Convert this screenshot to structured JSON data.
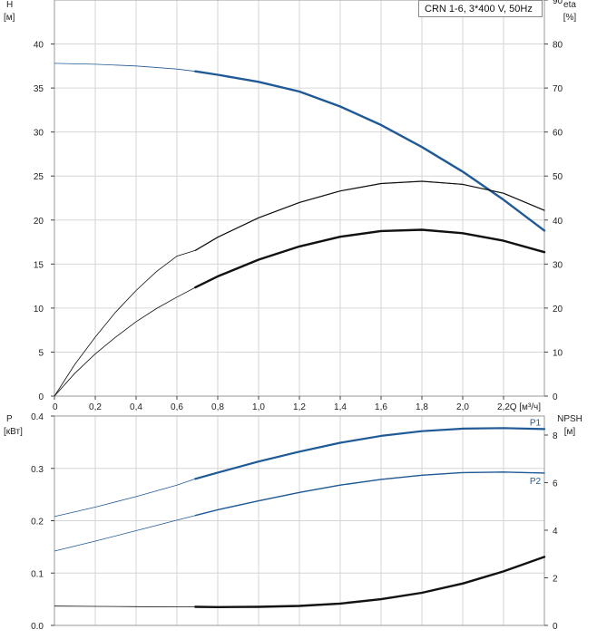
{
  "legend_box": {
    "text": "CRN 1-6, 3*400 V, 50Hz"
  },
  "chart_data": [
    {
      "type": "line",
      "x_label": "Q [м³/ч]",
      "x_ticks": [
        "0",
        "0,2",
        "0,4",
        "0,6",
        "0,8",
        "1,0",
        "1,2",
        "1,4",
        "1,6",
        "1,8",
        "2,0",
        "2,2"
      ],
      "xlim": [
        0,
        2.4
      ],
      "left_axis": {
        "label_top": "H",
        "label_unit": "[м]",
        "ylim": [
          0,
          45
        ],
        "ticks": [
          0,
          5,
          10,
          15,
          20,
          25,
          30,
          35,
          40
        ]
      },
      "right_axis": {
        "label_top": "eta",
        "label_unit": "[%]",
        "ylim": [
          0,
          90
        ],
        "ticks": [
          0,
          10,
          20,
          30,
          40,
          50,
          60,
          70,
          80,
          90
        ]
      },
      "grid": true,
      "series": [
        {
          "axis": "left",
          "color": "#1f5a96",
          "width_thin": 0.8,
          "width_bold": 2.4,
          "op_range": [
            0.69,
            2.4
          ],
          "x": [
            0,
            0.2,
            0.4,
            0.6,
            0.69,
            0.8,
            1.0,
            1.2,
            1.4,
            1.6,
            1.8,
            2.0,
            2.2,
            2.4
          ],
          "y": [
            37.8,
            37.7,
            37.5,
            37.15,
            36.9,
            36.5,
            35.7,
            34.6,
            32.9,
            30.8,
            28.3,
            25.5,
            22.3,
            18.8
          ]
        },
        {
          "axis": "right",
          "color": "#111111",
          "width_thin": 0.8,
          "width_bold": 1.2,
          "op_range": [
            0.69,
            2.4
          ],
          "x": [
            0,
            0.1,
            0.2,
            0.3,
            0.4,
            0.5,
            0.6,
            0.69,
            0.8,
            1.0,
            1.2,
            1.4,
            1.6,
            1.8,
            2.0,
            2.2,
            2.4
          ],
          "y": [
            0,
            7.2,
            13.4,
            19.1,
            24.0,
            28.3,
            31.8,
            33.1,
            36.1,
            40.5,
            44.0,
            46.6,
            48.3,
            48.8,
            48.1,
            46.1,
            42.2
          ]
        },
        {
          "axis": "right",
          "color": "#111111",
          "width_thin": 0.8,
          "width_bold": 2.4,
          "op_range": [
            0.69,
            2.4
          ],
          "x": [
            0,
            0.1,
            0.2,
            0.3,
            0.4,
            0.5,
            0.6,
            0.69,
            0.8,
            1.0,
            1.2,
            1.4,
            1.6,
            1.8,
            2.0,
            2.2,
            2.4
          ],
          "y": [
            0,
            5.2,
            9.6,
            13.4,
            16.9,
            19.9,
            22.5,
            24.7,
            27.2,
            31.0,
            34.0,
            36.2,
            37.5,
            37.8,
            37.0,
            35.3,
            32.7
          ]
        }
      ]
    },
    {
      "type": "line",
      "x_ticks": [],
      "xlim": [
        0,
        2.4
      ],
      "left_axis": {
        "label_top": "P",
        "label_unit": "[кВт]",
        "ylim": [
          0,
          0.4
        ],
        "ticks": [
          "0.0",
          "0.1",
          "0.2",
          "0.3",
          "0.4"
        ]
      },
      "right_axis": {
        "label_top": "NPSH",
        "label_unit": "[м]",
        "ylim": [
          0,
          8.8
        ],
        "ticks": [
          0,
          2,
          4,
          6,
          8
        ]
      },
      "grid": true,
      "series": [
        {
          "name": "P1",
          "axis": "left",
          "color": "#1f5a96",
          "width_thin": 0.8,
          "width_bold": 2.2,
          "op_range": [
            0.69,
            2.4
          ],
          "x": [
            0,
            0.2,
            0.4,
            0.6,
            0.69,
            0.8,
            1.0,
            1.2,
            1.4,
            1.6,
            1.8,
            2.0,
            2.2,
            2.4
          ],
          "y": [
            0.208,
            0.226,
            0.246,
            0.268,
            0.28,
            0.292,
            0.313,
            0.332,
            0.349,
            0.362,
            0.371,
            0.376,
            0.377,
            0.375
          ]
        },
        {
          "name": "P2",
          "axis": "left",
          "color": "#1f5a96",
          "width_thin": 0.8,
          "width_bold": 1.4,
          "op_range": [
            0.69,
            2.4
          ],
          "x": [
            0,
            0.2,
            0.4,
            0.6,
            0.69,
            0.8,
            1.0,
            1.2,
            1.4,
            1.6,
            1.8,
            2.0,
            2.2,
            2.4
          ],
          "y": [
            0.142,
            0.161,
            0.181,
            0.201,
            0.21,
            0.221,
            0.238,
            0.254,
            0.268,
            0.279,
            0.287,
            0.292,
            0.293,
            0.291
          ]
        },
        {
          "axis": "right",
          "color": "#111111",
          "width_thin": 0.8,
          "width_bold": 2.4,
          "op_range": [
            0.69,
            2.4
          ],
          "x": [
            0,
            0.2,
            0.4,
            0.6,
            0.69,
            0.8,
            1.0,
            1.2,
            1.4,
            1.6,
            1.8,
            2.0,
            2.2,
            2.4
          ],
          "y": [
            0.81,
            0.8,
            0.79,
            0.78,
            0.78,
            0.77,
            0.78,
            0.82,
            0.92,
            1.1,
            1.37,
            1.76,
            2.27,
            2.88
          ]
        }
      ]
    }
  ]
}
